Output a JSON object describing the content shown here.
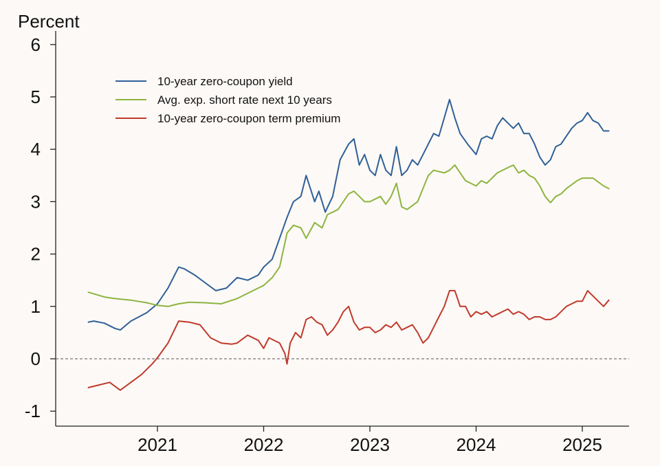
{
  "chart_data": {
    "type": "line",
    "y_unit_label": "Percent",
    "ylim": [
      -1.3,
      6.3
    ],
    "xlim": [
      2020.28,
      2025.5
    ],
    "y_ticks": [
      6,
      5,
      4,
      3,
      2,
      1,
      0,
      -1
    ],
    "y_tick_labels": [
      "6",
      "5",
      "4",
      "3",
      "2",
      "1",
      "0",
      "-1"
    ],
    "x_ticks": [
      2021,
      2022,
      2023,
      2024,
      2025
    ],
    "x_tick_labels": [
      "2021",
      "2022",
      "2023",
      "2024",
      "2025"
    ],
    "grid": false,
    "reference_line": {
      "y": 0,
      "style": "dashed",
      "color": "#777777"
    },
    "legend_position": "top-left",
    "series": [
      {
        "name": "10-year zero-coupon yield",
        "color": "#2f5f97",
        "x": [
          2020.35,
          2020.4,
          2020.5,
          2020.6,
          2020.65,
          2020.75,
          2020.9,
          2021.0,
          2021.1,
          2021.2,
          2021.25,
          2021.35,
          2021.45,
          2021.55,
          2021.65,
          2021.75,
          2021.85,
          2021.95,
          2022.0,
          2022.08,
          2022.15,
          2022.22,
          2022.28,
          2022.35,
          2022.4,
          2022.48,
          2022.52,
          2022.58,
          2022.65,
          2022.72,
          2022.8,
          2022.85,
          2022.9,
          2022.95,
          2023.0,
          2023.05,
          2023.1,
          2023.15,
          2023.2,
          2023.25,
          2023.3,
          2023.35,
          2023.4,
          2023.45,
          2023.5,
          2023.55,
          2023.6,
          2023.65,
          2023.7,
          2023.75,
          2023.8,
          2023.85,
          2023.92,
          2024.0,
          2024.05,
          2024.1,
          2024.15,
          2024.2,
          2024.25,
          2024.3,
          2024.35,
          2024.4,
          2024.45,
          2024.5,
          2024.55,
          2024.6,
          2024.65,
          2024.7,
          2024.75,
          2024.8,
          2024.85,
          2024.9,
          2024.95,
          2025.0,
          2025.05,
          2025.1,
          2025.15,
          2025.2,
          2025.25
        ],
        "values": [
          0.7,
          0.72,
          0.68,
          0.58,
          0.55,
          0.72,
          0.88,
          1.05,
          1.35,
          1.75,
          1.72,
          1.6,
          1.45,
          1.3,
          1.35,
          1.55,
          1.5,
          1.6,
          1.75,
          1.9,
          2.3,
          2.7,
          3.0,
          3.1,
          3.5,
          3.0,
          3.2,
          2.8,
          3.1,
          3.8,
          4.1,
          4.2,
          3.7,
          3.9,
          3.6,
          3.5,
          3.9,
          3.6,
          3.5,
          4.05,
          3.5,
          3.6,
          3.8,
          3.7,
          3.9,
          4.1,
          4.3,
          4.25,
          4.6,
          4.95,
          4.6,
          4.3,
          4.1,
          3.9,
          4.2,
          4.25,
          4.2,
          4.45,
          4.6,
          4.5,
          4.4,
          4.5,
          4.3,
          4.3,
          4.1,
          3.85,
          3.7,
          3.8,
          4.05,
          4.1,
          4.25,
          4.4,
          4.5,
          4.55,
          4.7,
          4.55,
          4.5,
          4.35,
          4.35
        ]
      },
      {
        "name": "Avg. exp. short rate next 10 years",
        "color": "#8db43e",
        "x": [
          2020.35,
          2020.5,
          2020.6,
          2020.75,
          2020.9,
          2021.0,
          2021.1,
          2021.2,
          2021.3,
          2021.45,
          2021.6,
          2021.75,
          2021.9,
          2022.0,
          2022.08,
          2022.15,
          2022.22,
          2022.28,
          2022.35,
          2022.4,
          2022.48,
          2022.55,
          2022.6,
          2022.7,
          2022.8,
          2022.85,
          2022.9,
          2022.95,
          2023.0,
          2023.1,
          2023.15,
          2023.2,
          2023.25,
          2023.3,
          2023.35,
          2023.45,
          2023.55,
          2023.6,
          2023.7,
          2023.75,
          2023.8,
          2023.85,
          2023.9,
          2024.0,
          2024.05,
          2024.1,
          2024.15,
          2024.2,
          2024.3,
          2024.35,
          2024.4,
          2024.45,
          2024.5,
          2024.55,
          2024.6,
          2024.65,
          2024.7,
          2024.75,
          2024.8,
          2024.85,
          2024.95,
          2025.0,
          2025.1,
          2025.2,
          2025.25
        ],
        "values": [
          1.27,
          1.18,
          1.15,
          1.12,
          1.07,
          1.02,
          1.0,
          1.05,
          1.08,
          1.07,
          1.05,
          1.15,
          1.3,
          1.4,
          1.55,
          1.75,
          2.4,
          2.55,
          2.5,
          2.3,
          2.6,
          2.5,
          2.75,
          2.85,
          3.15,
          3.2,
          3.1,
          3.0,
          3.0,
          3.1,
          2.95,
          3.1,
          3.35,
          2.9,
          2.85,
          3.0,
          3.5,
          3.6,
          3.55,
          3.6,
          3.7,
          3.55,
          3.4,
          3.3,
          3.4,
          3.35,
          3.45,
          3.55,
          3.65,
          3.7,
          3.55,
          3.6,
          3.5,
          3.45,
          3.3,
          3.1,
          2.98,
          3.1,
          3.15,
          3.25,
          3.4,
          3.45,
          3.45,
          3.3,
          3.25
        ]
      },
      {
        "name": "10-year zero-coupon term premium",
        "color": "#c0392b",
        "x": [
          2020.35,
          2020.45,
          2020.55,
          2020.65,
          2020.75,
          2020.85,
          2020.95,
          2021.0,
          2021.1,
          2021.2,
          2021.3,
          2021.4,
          2021.5,
          2021.6,
          2021.7,
          2021.75,
          2021.85,
          2021.95,
          2022.0,
          2022.05,
          2022.15,
          2022.2,
          2022.22,
          2022.25,
          2022.3,
          2022.35,
          2022.4,
          2022.45,
          2022.5,
          2022.55,
          2022.6,
          2022.65,
          2022.7,
          2022.75,
          2022.8,
          2022.85,
          2022.9,
          2022.95,
          2023.0,
          2023.05,
          2023.1,
          2023.15,
          2023.2,
          2023.25,
          2023.3,
          2023.35,
          2023.4,
          2023.45,
          2023.5,
          2023.55,
          2023.6,
          2023.65,
          2023.7,
          2023.75,
          2023.8,
          2023.85,
          2023.9,
          2023.95,
          2024.0,
          2024.05,
          2024.1,
          2024.15,
          2024.2,
          2024.25,
          2024.3,
          2024.35,
          2024.4,
          2024.45,
          2024.5,
          2024.55,
          2024.6,
          2024.65,
          2024.7,
          2024.75,
          2024.8,
          2024.85,
          2024.9,
          2024.95,
          2025.0,
          2025.05,
          2025.1,
          2025.15,
          2025.2,
          2025.25
        ],
        "values": [
          -0.55,
          -0.5,
          -0.45,
          -0.6,
          -0.45,
          -0.3,
          -0.1,
          0.02,
          0.3,
          0.72,
          0.7,
          0.65,
          0.4,
          0.3,
          0.28,
          0.3,
          0.45,
          0.35,
          0.2,
          0.4,
          0.3,
          0.1,
          -0.1,
          0.3,
          0.5,
          0.4,
          0.75,
          0.8,
          0.7,
          0.65,
          0.45,
          0.55,
          0.7,
          0.9,
          1.0,
          0.7,
          0.55,
          0.6,
          0.6,
          0.5,
          0.55,
          0.65,
          0.6,
          0.7,
          0.55,
          0.6,
          0.65,
          0.5,
          0.3,
          0.4,
          0.6,
          0.8,
          1.0,
          1.3,
          1.3,
          1.0,
          1.0,
          0.8,
          0.9,
          0.85,
          0.9,
          0.8,
          0.85,
          0.9,
          0.95,
          0.85,
          0.9,
          0.85,
          0.75,
          0.8,
          0.8,
          0.75,
          0.75,
          0.8,
          0.9,
          1.0,
          1.05,
          1.1,
          1.1,
          1.3,
          1.2,
          1.1,
          1.0,
          1.12
        ]
      }
    ]
  }
}
